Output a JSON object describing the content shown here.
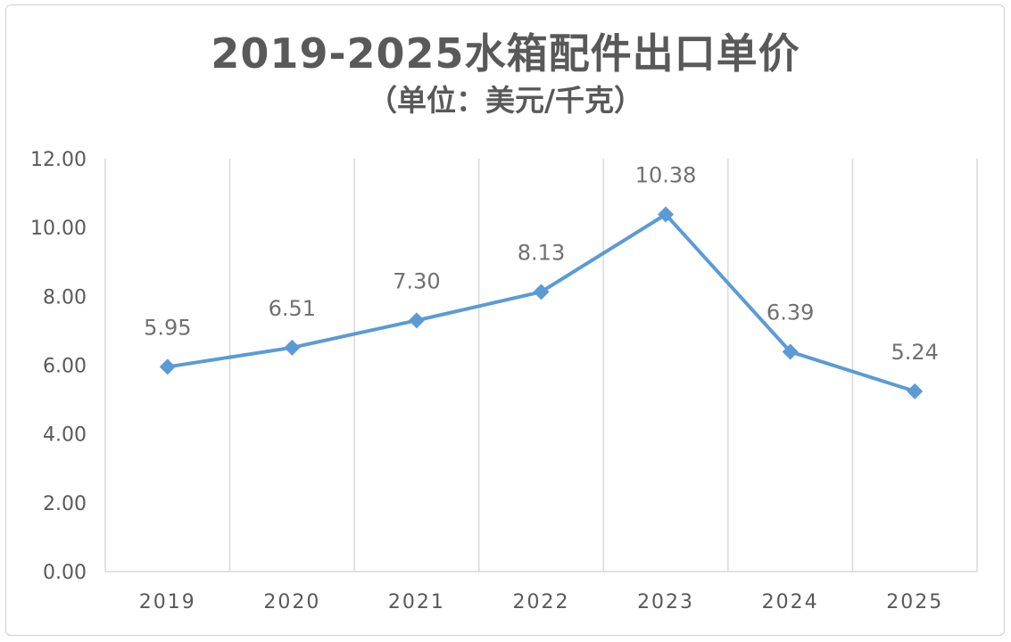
{
  "chart_data": {
    "type": "line",
    "title": "2019-2025水箱配件出口单价",
    "subtitle": "（单位：美元/千克）",
    "categories": [
      "2019",
      "2020",
      "2021",
      "2022",
      "2023",
      "2024",
      "2025"
    ],
    "series": [
      {
        "values": [
          5.95,
          6.51,
          7.3,
          8.13,
          10.38,
          6.39,
          5.24
        ],
        "labels": [
          "5.95",
          "6.51",
          "7.30",
          "8.13",
          "10.38",
          "6.39",
          "5.24"
        ]
      }
    ],
    "y_ticks": [
      "0.00",
      "2.00",
      "4.00",
      "6.00",
      "8.00",
      "10.00",
      "12.00"
    ],
    "ylim": [
      0,
      12
    ],
    "grid": "vertical",
    "legend": "none",
    "line_color": "#5b9bd5",
    "grid_color": "#d9d9d9"
  }
}
